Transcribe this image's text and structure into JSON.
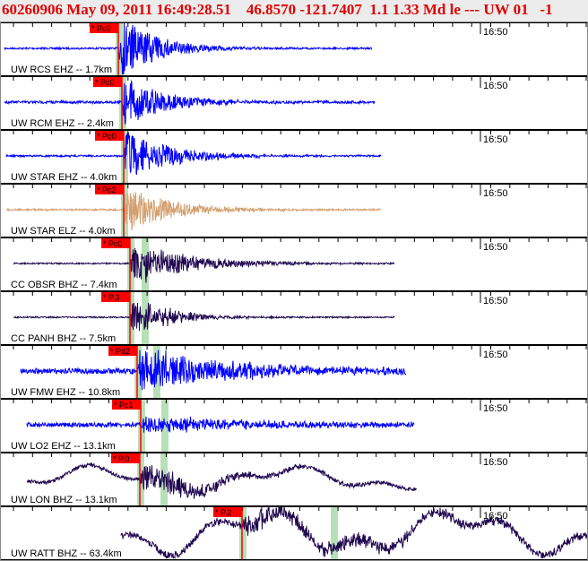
{
  "header": {
    "title": "60260906 May 09, 2011 16:49:28.51    46.8570 -121.7407  1.1 1.33 Md le --- UW 01   -1"
  },
  "time_label": "16:50",
  "colors": {
    "header_text": "#e00000",
    "pick_flag": "#ff0000",
    "window": "#b8e0b8",
    "blue": "#0000ff",
    "tan": "#d4a070",
    "purple": "#200850"
  },
  "channels": [
    {
      "label": "UW RCS EHZ -- 1.7km",
      "pick": "* Pc0",
      "color": "blue"
    },
    {
      "label": "UW RCM EHZ -- 2.4km",
      "pick": "* Pc0",
      "color": "blue"
    },
    {
      "label": "UW STAR EHZ -- 4.0km",
      "pick": "* Pc0",
      "color": "blue"
    },
    {
      "label": "UW STAR ELZ -- 4.0km",
      "pick": "* Pc2",
      "color": "tan"
    },
    {
      "label": "CC OBSR BHZ -- 7.4km",
      "pick": "* Pc0",
      "color": "purple"
    },
    {
      "label": "CC PANH BHZ -- 7.5km",
      "pick": "* P.3",
      "color": "purple"
    },
    {
      "label": "UW FMW EHZ -- 10.8km",
      "pick": "* Pd2",
      "color": "blue"
    },
    {
      "label": "UW LO2 EHZ -- 13.1km",
      "pick": "* Pc1",
      "color": "blue"
    },
    {
      "label": "UW LON BHZ -- 13.1km",
      "pick": "* P.0",
      "color": "purple"
    },
    {
      "label": "UW RATT BHZ -- 63.4km",
      "pick": "* P.2",
      "color": "purple"
    }
  ]
}
